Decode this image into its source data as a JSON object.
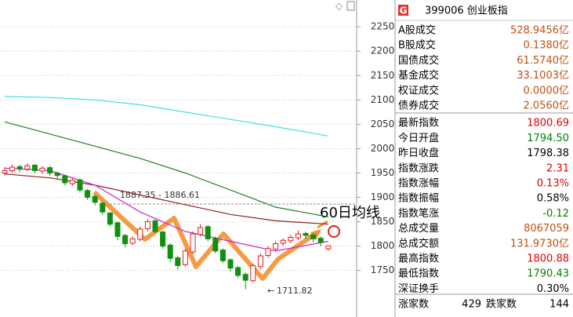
{
  "chart_data": {
    "type": "candlestick",
    "open": [
      1950,
      1955,
      1963,
      1958,
      1966,
      1954,
      1961,
      1950,
      1944,
      1928,
      1936,
      1914,
      1902,
      1888,
      1868,
      1848,
      1822,
      1806,
      1814,
      1836,
      1852,
      1829,
      1802,
      1776,
      1762,
      1788,
      1824,
      1840,
      1816,
      1792,
      1772,
      1756,
      1742,
      1729,
      1758,
      1781,
      1794,
      1806,
      1811,
      1817,
      1826,
      1823,
      1816,
      1794.5
    ],
    "high": [
      1962,
      1968,
      1967,
      1970,
      1969,
      1964,
      1965,
      1953,
      1947,
      1940,
      1939,
      1918,
      1905,
      1891,
      1870,
      1850,
      1825,
      1820,
      1840,
      1856,
      1855,
      1832,
      1806,
      1780,
      1795,
      1830,
      1845,
      1843,
      1820,
      1795,
      1775,
      1760,
      1746,
      1764,
      1785,
      1800,
      1810,
      1816,
      1823,
      1832,
      1830,
      1826,
      1820,
      1800.88
    ],
    "low": [
      1945,
      1950,
      1952,
      1954,
      1950,
      1948,
      1944,
      1938,
      1925,
      1924,
      1910,
      1895,
      1884,
      1864,
      1840,
      1812,
      1798,
      1802,
      1810,
      1830,
      1826,
      1795,
      1768,
      1752,
      1758,
      1784,
      1820,
      1810,
      1785,
      1765,
      1748,
      1735,
      1711.82,
      1725,
      1752,
      1776,
      1790,
      1800,
      1806,
      1812,
      1815,
      1808,
      1800,
      1790.43
    ],
    "close": [
      1955,
      1962,
      1958,
      1965,
      1955,
      1960,
      1950,
      1945,
      1930,
      1935,
      1915,
      1900,
      1890,
      1870,
      1845,
      1820,
      1805,
      1815,
      1835,
      1850,
      1830,
      1800,
      1775,
      1760,
      1790,
      1825,
      1838,
      1815,
      1790,
      1770,
      1755,
      1740,
      1730,
      1760,
      1780,
      1795,
      1805,
      1812,
      1818,
      1825,
      1822,
      1815,
      1808,
      1800.69
    ],
    "up_color": "#e02020",
    "down_color": "#109010",
    "lines": [
      {
        "color": "#40e0e0",
        "x": [
          0,
          6,
          12,
          18,
          24,
          30,
          36,
          43
        ],
        "values": [
          2107,
          2105,
          2100,
          2090,
          2075,
          2060,
          2045,
          2026
        ]
      },
      {
        "color": "#208020",
        "x": [
          0,
          6,
          12,
          18,
          24,
          30,
          36,
          43
        ],
        "values": [
          2055,
          2030,
          2005,
          1980,
          1950,
          1915,
          1880,
          1860
        ]
      },
      {
        "color": "#902020",
        "x": [
          0,
          6,
          12,
          18,
          24,
          30,
          36,
          43
        ],
        "values": [
          1948,
          1940,
          1925,
          1905,
          1885,
          1865,
          1852,
          1845
        ]
      },
      {
        "color": "#d020d0",
        "x": [
          0,
          6,
          12,
          18,
          24,
          30,
          36,
          43
        ],
        "values": [
          1960,
          1955,
          1925,
          1870,
          1830,
          1810,
          1790,
          1810
        ]
      }
    ],
    "ylim": [
      1690,
      2305
    ],
    "yticks": [
      1750,
      1800,
      1850,
      1900,
      1950,
      2000,
      2050,
      2100,
      2150,
      2200,
      2250
    ],
    "grid": true,
    "annotations": [
      "60日均线",
      "1887.35 - 1886.61",
      "1711.82"
    ]
  },
  "panel": {
    "icon": "G",
    "title": "399006 创业板指",
    "rows": [
      {
        "label": "A股成交",
        "value": "528.9456亿",
        "color": "#c05010"
      },
      {
        "label": "B股成交",
        "value": "0.1380亿",
        "color": "#c05010"
      },
      {
        "label": "国债成交",
        "value": "61.5740亿",
        "color": "#c05010"
      },
      {
        "label": "基金成交",
        "value": "33.1003亿",
        "color": "#c05010"
      },
      {
        "label": "权证成交",
        "value": "0.0000亿",
        "color": "#c05010"
      },
      {
        "label": "债券成交",
        "value": "2.0560亿",
        "color": "#c05010"
      },
      {
        "label": "最新指数",
        "value": "1800.69",
        "color": "#e00000"
      },
      {
        "label": "今日开盘",
        "value": "1794.50",
        "color": "#008000"
      },
      {
        "label": "昨日收盘",
        "value": "1798.38",
        "color": "#000000"
      },
      {
        "label": "指数涨跌",
        "value": "2.31",
        "color": "#e00000"
      },
      {
        "label": "指数涨幅",
        "value": "0.13%",
        "color": "#e00000"
      },
      {
        "label": "指数振幅",
        "value": "0.58%",
        "color": "#000000"
      },
      {
        "label": "指数笔涨",
        "value": "-0.12",
        "color": "#008000"
      },
      {
        "label": "总成交量",
        "value": "8067059",
        "color": "#c05010"
      },
      {
        "label": "总成交额",
        "value": "131.9730亿",
        "color": "#c05010"
      },
      {
        "label": "最高指数",
        "value": "1800.88",
        "color": "#e00000"
      },
      {
        "label": "最低指数",
        "value": "1790.43",
        "color": "#008000"
      },
      {
        "label": "深证换手",
        "value": "0.30%",
        "color": "#000000"
      }
    ],
    "breadth": {
      "up_label": "涨家数",
      "up": "429",
      "down_label": "跌家数",
      "down": "144"
    }
  }
}
